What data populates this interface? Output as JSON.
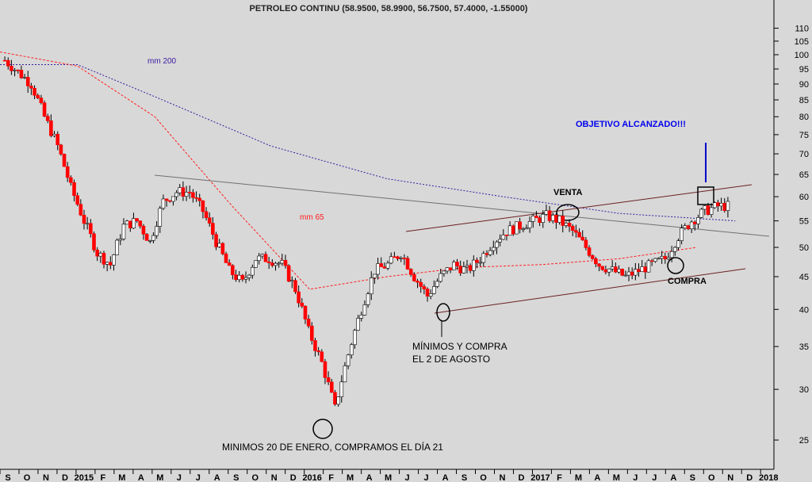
{
  "chart_data": {
    "type": "candlestick",
    "title": "PETROLEO CONTINU (58.9500, 58.9900, 56.7500, 57.4000, -1.55000)",
    "y_scale": "log",
    "ylim": [
      22.5,
      115
    ],
    "y_ticks": [
      25,
      30,
      35,
      40,
      45,
      50,
      55,
      60,
      65,
      70,
      75,
      80,
      85,
      90,
      95,
      100,
      105,
      110
    ],
    "x_ticks": [
      "S",
      "O",
      "N",
      "D",
      "2015",
      "F",
      "M",
      "A",
      "M",
      "J",
      "J",
      "A",
      "S",
      "O",
      "N",
      "D",
      "2016",
      "F",
      "M",
      "A",
      "M",
      "J",
      "J",
      "A",
      "S",
      "O",
      "N",
      "D",
      "2017",
      "F",
      "M",
      "A",
      "M",
      "J",
      "J",
      "A",
      "S",
      "O",
      "N",
      "D",
      "2018"
    ],
    "grid": false,
    "colors": {
      "up": "#ffffff",
      "down": "#ff0000",
      "wick": "#000000",
      "mm200": "#3a1aa0",
      "mm65": "#ff2020",
      "channel": "#6b2020",
      "trendline": "#707070",
      "arrow": "#0000cc",
      "objective_text": "#0000ee"
    },
    "series": [
      {
        "name": "mm 200",
        "x": [
          0,
          0.1,
          0.2,
          0.35,
          0.5,
          0.65,
          0.8,
          0.95
        ],
        "values": [
          96.5,
          96.5,
          86,
          72,
          64,
          60,
          56.5,
          55
        ]
      },
      {
        "name": "mm 65",
        "x": [
          0,
          0.1,
          0.2,
          0.3,
          0.4,
          0.5,
          0.6,
          0.7,
          0.8,
          0.9
        ],
        "values": [
          101,
          96,
          80,
          58,
          43,
          45,
          46.5,
          47,
          48,
          50
        ]
      }
    ],
    "candles_approx": [
      98,
      94,
      90,
      80,
      72,
      62,
      55,
      49,
      47,
      54,
      55,
      51,
      59,
      61,
      61,
      57,
      51,
      46,
      44,
      48,
      48,
      47,
      43,
      37,
      33,
      28,
      34,
      40,
      46,
      47,
      49,
      45,
      42,
      45,
      47,
      46,
      48,
      51,
      53,
      54,
      55,
      56,
      55,
      53,
      50,
      47,
      46,
      45,
      46,
      47,
      48,
      52,
      55,
      57,
      58
    ],
    "annotations": [
      {
        "text": "mm 200"
      },
      {
        "text": "mm 65"
      },
      {
        "text": "OBJETIVO ALCANZADO!!!"
      },
      {
        "text": "VENTA"
      },
      {
        "text": "COMPRA"
      },
      {
        "text": "MÍNIMOS Y COMPRA"
      },
      {
        "text": "EL 2 DE AGOSTO"
      },
      {
        "text": "MINIMOS 20 DE ENERO, COMPRAMOS EL DÍA 21"
      }
    ]
  }
}
